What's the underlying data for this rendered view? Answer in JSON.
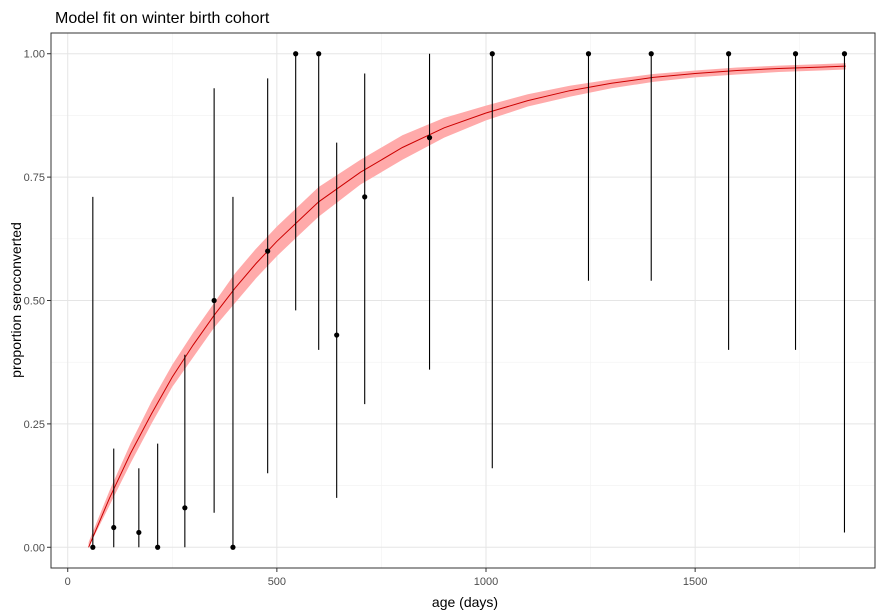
{
  "chart_data": {
    "type": "scatter",
    "title": "Model fit on winter birth cohort",
    "xlabel": "age (days)",
    "ylabel": "proportion seroconverted",
    "xlim": [
      -40,
      1930
    ],
    "ylim": [
      -0.042,
      1.042
    ],
    "x_ticks": [
      0,
      500,
      1000,
      1500
    ],
    "x_tick_labels": [
      "0",
      "500",
      "1000",
      "1500"
    ],
    "y_ticks": [
      0,
      0.25,
      0.5,
      0.75,
      1
    ],
    "y_tick_labels": [
      "0.00",
      "0.25",
      "0.50",
      "0.75",
      "1.00"
    ],
    "grid": true,
    "observations": [
      {
        "x": 60,
        "y": 0.0,
        "lower": 0.0,
        "upper": 0.71
      },
      {
        "x": 110,
        "y": 0.04,
        "lower": 0.0,
        "upper": 0.2
      },
      {
        "x": 170,
        "y": 0.03,
        "lower": 0.0,
        "upper": 0.16
      },
      {
        "x": 215,
        "y": 0.0,
        "lower": 0.0,
        "upper": 0.21
      },
      {
        "x": 280,
        "y": 0.08,
        "lower": 0.0,
        "upper": 0.39
      },
      {
        "x": 350,
        "y": 0.5,
        "lower": 0.07,
        "upper": 0.93
      },
      {
        "x": 395,
        "y": 0.0,
        "lower": 0.0,
        "upper": 0.71
      },
      {
        "x": 478,
        "y": 0.6,
        "lower": 0.15,
        "upper": 0.95
      },
      {
        "x": 545,
        "y": 1.0,
        "lower": 0.48,
        "upper": 1.0
      },
      {
        "x": 600,
        "y": 1.0,
        "lower": 0.4,
        "upper": 1.0
      },
      {
        "x": 643,
        "y": 0.43,
        "lower": 0.1,
        "upper": 0.82
      },
      {
        "x": 710,
        "y": 0.71,
        "lower": 0.29,
        "upper": 0.96
      },
      {
        "x": 865,
        "y": 0.83,
        "lower": 0.36,
        "upper": 1.0
      },
      {
        "x": 1015,
        "y": 1.0,
        "lower": 0.16,
        "upper": 1.0
      },
      {
        "x": 1245,
        "y": 1.0,
        "lower": 0.54,
        "upper": 1.0
      },
      {
        "x": 1395,
        "y": 1.0,
        "lower": 0.54,
        "upper": 1.0
      },
      {
        "x": 1580,
        "y": 1.0,
        "lower": 0.4,
        "upper": 1.0
      },
      {
        "x": 1740,
        "y": 1.0,
        "lower": 0.4,
        "upper": 1.0
      },
      {
        "x": 1857,
        "y": 1.0,
        "lower": 0.03,
        "upper": 1.0
      }
    ],
    "fit": {
      "x": [
        50,
        100,
        150,
        200,
        250,
        300,
        350,
        400,
        450,
        500,
        550,
        600,
        700,
        800,
        900,
        1000,
        1100,
        1200,
        1300,
        1400,
        1500,
        1600,
        1700,
        1800,
        1860
      ],
      "y": [
        0.0,
        0.1,
        0.19,
        0.27,
        0.345,
        0.41,
        0.47,
        0.525,
        0.575,
        0.62,
        0.66,
        0.7,
        0.76,
        0.81,
        0.85,
        0.88,
        0.905,
        0.925,
        0.94,
        0.952,
        0.96,
        0.966,
        0.97,
        0.973,
        0.975
      ],
      "lower": [
        0.0,
        0.085,
        0.17,
        0.25,
        0.325,
        0.385,
        0.445,
        0.495,
        0.545,
        0.59,
        0.63,
        0.67,
        0.735,
        0.785,
        0.83,
        0.865,
        0.893,
        0.913,
        0.93,
        0.943,
        0.952,
        0.958,
        0.963,
        0.966,
        0.968
      ],
      "upper": [
        0.01,
        0.115,
        0.21,
        0.295,
        0.37,
        0.435,
        0.495,
        0.555,
        0.605,
        0.65,
        0.69,
        0.73,
        0.785,
        0.835,
        0.87,
        0.895,
        0.918,
        0.935,
        0.948,
        0.959,
        0.966,
        0.972,
        0.976,
        0.979,
        0.981
      ]
    },
    "colors": {
      "fit_line": "#cc0000",
      "fit_ribbon": "#ffaaaa",
      "points": "#000000",
      "grid_major": "#e5e5e5",
      "grid_minor": "#f2f2f2",
      "panel_border": "#333333",
      "tick": "#333333"
    }
  }
}
